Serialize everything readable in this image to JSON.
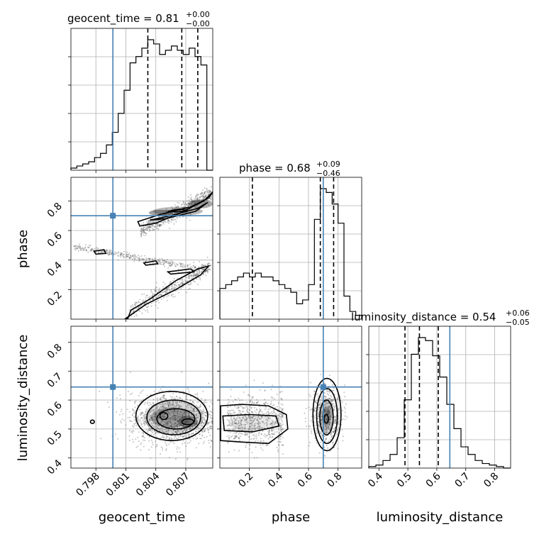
{
  "chart_data": {
    "type": "corner",
    "parameters": [
      {
        "name": "geocent_time",
        "xlabel": "geocent_time",
        "ylabel": "",
        "range": [
          0.7955,
          0.8097
        ],
        "ticks": [
          0.798,
          0.801,
          0.804,
          0.807
        ],
        "tick_labels": [
          "0.798",
          "0.801",
          "0.804",
          "0.807"
        ],
        "truth": 0.7997,
        "quantiles": [
          0.8032,
          0.8066,
          0.8082
        ],
        "title_prefix": "geocent_time = 0.81",
        "title_plus": "+0.00",
        "title_minus": "−0.00",
        "hist": [
          1,
          2,
          3,
          4,
          6,
          8,
          12,
          18,
          27,
          38,
          51,
          54,
          58,
          62,
          60,
          55,
          57,
          59,
          57,
          55,
          58,
          54,
          50,
          0
        ]
      },
      {
        "name": "phase",
        "xlabel": "phase",
        "ylabel": "phase",
        "range": [
          0.0,
          0.96
        ],
        "ticks": [
          0.2,
          0.4,
          0.6,
          0.8
        ],
        "tick_labels": [
          "0.2",
          "0.4",
          "0.6",
          "0.8"
        ],
        "truth": 0.7,
        "quantiles": [
          0.22,
          0.68,
          0.77
        ],
        "title_prefix": "phase = 0.68",
        "title_plus": "+0.09",
        "title_minus": "−0.46",
        "hist": [
          8,
          9,
          10,
          11,
          12,
          11,
          12,
          11,
          11,
          10,
          9,
          8,
          7,
          4,
          5,
          9,
          26,
          34,
          33,
          30,
          25,
          6,
          2,
          1
        ]
      },
      {
        "name": "luminosity_distance",
        "xlabel": "luminosity_distance",
        "ylabel": "luminosity_distance",
        "range": [
          0.365,
          0.855
        ],
        "ticks": [
          0.4,
          0.5,
          0.6,
          0.7,
          0.8
        ],
        "tick_labels": [
          "0.4",
          "0.5",
          "0.6",
          "0.7",
          "0.8"
        ],
        "truth": 0.645,
        "quantiles": [
          0.49,
          0.54,
          0.605
        ],
        "title_prefix": "luminosity_distance = 0.54",
        "title_plus": "+0.06",
        "title_minus": "−0.05",
        "hist": [
          1,
          2,
          5,
          9,
          20,
          45,
          75,
          86,
          84,
          74,
          60,
          42,
          26,
          14,
          9,
          5,
          3,
          2,
          1,
          0
        ]
      }
    ],
    "truth_color": "#4682b4",
    "grid": true
  }
}
